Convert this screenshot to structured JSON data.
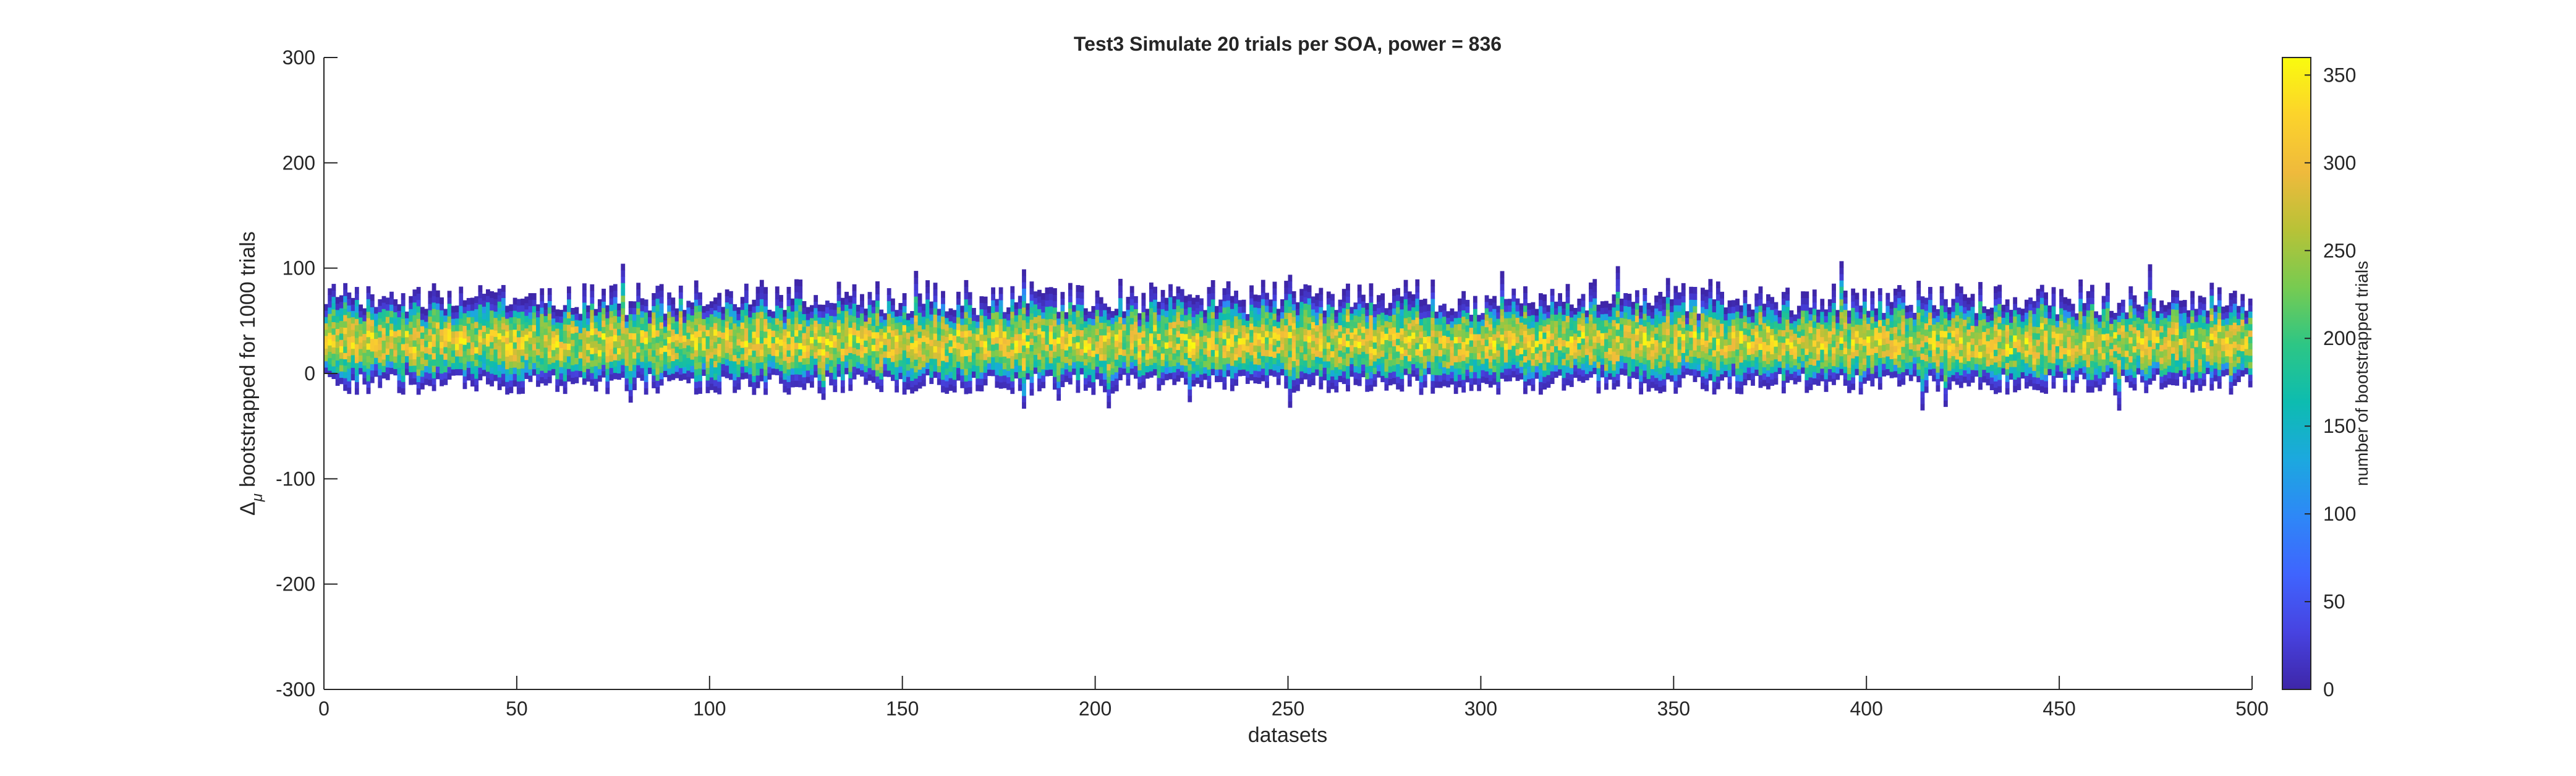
{
  "chart_data": {
    "type": "heatmap",
    "title": "Test3 Simulate 20 trials per SOA, power = 836",
    "xlabel": "datasets",
    "ylabel": "Δ_μ bootstrapped for 1000 trials",
    "ylabel_parts": {
      "delta": "Δ",
      "mu": "μ",
      "rest": "bootstrapped for 1000 trials"
    },
    "xlim": [
      0,
      500
    ],
    "ylim": [
      -300,
      300
    ],
    "x_ticks": [
      0,
      50,
      100,
      150,
      200,
      250,
      300,
      350,
      400,
      450,
      500
    ],
    "y_ticks": [
      300,
      200,
      100,
      0,
      -100,
      -200,
      -300
    ],
    "grid": false,
    "n_datasets": 500,
    "bootstrap_trials": 1000,
    "typical_center": 30,
    "typical_upper": 70,
    "typical_lower": -10,
    "max_observed": 103,
    "min_observed": -45,
    "colorbar": {
      "label": "number of bootstrapped trials",
      "range": [
        0,
        360
      ],
      "ticks": [
        0,
        50,
        100,
        150,
        200,
        250,
        300,
        350
      ],
      "colormap": "parula",
      "colors": [
        "#3e26a8",
        "#4743e1",
        "#3f64fe",
        "#2e87f7",
        "#1ca8df",
        "#0dbcb0",
        "#2dc685",
        "#77cb51",
        "#b8c237",
        "#efba3c",
        "#fcd32b",
        "#f9fb0e"
      ]
    }
  }
}
